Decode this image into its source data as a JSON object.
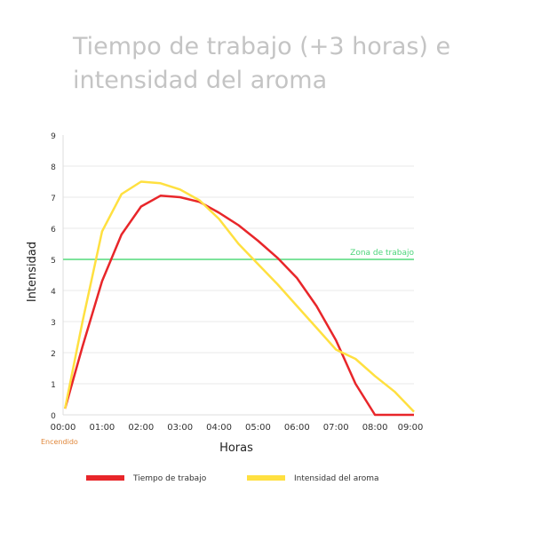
{
  "chart_data": {
    "type": "line",
    "title": "Tiempo de trabajo (+3 horas) e intensidad del aroma",
    "xlabel": "Horas",
    "ylabel": "Intensidad",
    "xlim": [
      0,
      9
    ],
    "ylim": [
      0,
      9
    ],
    "x_ticks": [
      "00:00",
      "01:00",
      "02:00",
      "03:00",
      "04:00",
      "05:00",
      "06:00",
      "07:00",
      "08:00",
      "09:00"
    ],
    "y_ticks": [
      0,
      1,
      2,
      3,
      4,
      5,
      6,
      7,
      8,
      9
    ],
    "grid": true,
    "legend_position": "bottom",
    "annotations": {
      "start_label": "Encendido",
      "reference_line": {
        "y": 5,
        "label": "Zona de trabajo",
        "color": "#7ee39c"
      }
    },
    "start_label_color": "#e0873a",
    "series": [
      {
        "name": "Tiempo de trabajo",
        "color": "#e8262a",
        "points": [
          [
            0.05,
            0.2
          ],
          [
            0.5,
            2.2
          ],
          [
            1,
            4.3
          ],
          [
            1.5,
            5.8
          ],
          [
            2,
            6.7
          ],
          [
            2.5,
            7.05
          ],
          [
            3,
            7.0
          ],
          [
            3.5,
            6.85
          ],
          [
            4,
            6.5
          ],
          [
            4.5,
            6.1
          ],
          [
            5,
            5.6
          ],
          [
            5.5,
            5.05
          ],
          [
            6,
            4.4
          ],
          [
            6.5,
            3.5
          ],
          [
            7,
            2.4
          ],
          [
            7.5,
            1.0
          ],
          [
            8,
            0
          ],
          [
            9,
            0
          ]
        ]
      },
      {
        "name": "Intensidad del aroma",
        "color": "#ffe040",
        "points": [
          [
            0.05,
            0.2
          ],
          [
            0.5,
            3
          ],
          [
            1,
            5.9
          ],
          [
            1.5,
            7.1
          ],
          [
            2,
            7.5
          ],
          [
            2.5,
            7.45
          ],
          [
            3,
            7.25
          ],
          [
            3.5,
            6.9
          ],
          [
            4,
            6.3
          ],
          [
            4.5,
            5.5
          ],
          [
            5,
            4.85
          ],
          [
            5.5,
            4.2
          ],
          [
            6,
            3.5
          ],
          [
            6.5,
            2.8
          ],
          [
            7,
            2.1
          ],
          [
            7.5,
            1.8
          ],
          [
            8,
            1.25
          ],
          [
            8.5,
            0.75
          ],
          [
            9,
            0.1
          ]
        ]
      }
    ]
  }
}
